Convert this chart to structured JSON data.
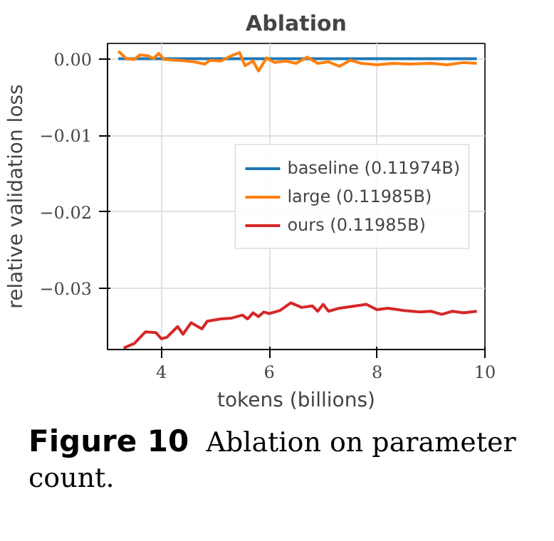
{
  "chart_data": {
    "type": "line",
    "title": "Ablation",
    "xlabel": "tokens (billions)",
    "ylabel": "relative validation loss",
    "xlim": [
      3.0,
      10.0
    ],
    "xticks": [
      4,
      6,
      8,
      10
    ],
    "ylim": [
      -0.038,
      0.002
    ],
    "yticks": [
      {
        "value": 0,
        "label": "0.00"
      },
      {
        "value": -0.01,
        "label": "−0.01"
      },
      {
        "value": -0.02,
        "label": "−0.02"
      },
      {
        "value": -0.03,
        "label": "−0.03"
      }
    ],
    "grid": true,
    "legend": "right",
    "line_style": "solid",
    "marker": "none",
    "series": [
      {
        "name": "baseline (0.11974B)",
        "color": "#1f77b4",
        "x": [
          3.2,
          9.85
        ],
        "values": [
          0,
          0
        ]
      },
      {
        "name": "large (0.11985B)",
        "color": "#ff7f0e",
        "x": [
          3.2,
          3.35,
          3.5,
          3.6,
          3.75,
          3.85,
          3.95,
          4.05,
          4.3,
          4.6,
          4.8,
          4.9,
          5.1,
          5.3,
          5.45,
          5.55,
          5.7,
          5.8,
          5.95,
          6.1,
          6.3,
          6.5,
          6.7,
          6.9,
          7.1,
          7.3,
          7.5,
          7.7,
          8.0,
          8.3,
          8.6,
          9.0,
          9.3,
          9.6,
          9.85
        ],
        "values": [
          0.001,
          0.0,
          -0.0001,
          0.0005,
          0.0004,
          0.0,
          0.0007,
          -0.0001,
          -0.0002,
          -0.0004,
          -0.0007,
          -0.0002,
          -0.0003,
          0.0004,
          0.0008,
          -0.0009,
          -0.0003,
          -0.0016,
          0.0001,
          -0.0005,
          -0.0003,
          -0.0006,
          0.0002,
          -0.0006,
          -0.0004,
          -0.001,
          -0.0002,
          -0.0006,
          -0.0008,
          -0.0006,
          -0.0007,
          -0.0006,
          -0.0008,
          -0.0005,
          -0.0006
        ]
      },
      {
        "name": "ours (0.11985B)",
        "color": "#d62728",
        "x": [
          3.3,
          3.5,
          3.7,
          3.9,
          4.0,
          4.1,
          4.3,
          4.4,
          4.55,
          4.75,
          4.85,
          5.1,
          5.3,
          5.5,
          5.6,
          5.7,
          5.8,
          5.9,
          6.0,
          6.2,
          6.4,
          6.6,
          6.8,
          6.9,
          7.0,
          7.1,
          7.3,
          7.6,
          7.8,
          8.0,
          8.2,
          8.5,
          8.8,
          9.0,
          9.2,
          9.4,
          9.6,
          9.85
        ],
        "values": [
          -0.0378,
          -0.0372,
          -0.0357,
          -0.0358,
          -0.0366,
          -0.0364,
          -0.035,
          -0.036,
          -0.0345,
          -0.0353,
          -0.0343,
          -0.034,
          -0.0339,
          -0.0335,
          -0.034,
          -0.0332,
          -0.0337,
          -0.0331,
          -0.0333,
          -0.0329,
          -0.0319,
          -0.0325,
          -0.0323,
          -0.033,
          -0.0321,
          -0.033,
          -0.0326,
          -0.0323,
          -0.0321,
          -0.0328,
          -0.0326,
          -0.0329,
          -0.0331,
          -0.033,
          -0.0334,
          -0.033,
          -0.0332,
          -0.033
        ]
      }
    ],
    "annotations": [
      "Figure 10 Ablation on parameter count."
    ]
  }
}
